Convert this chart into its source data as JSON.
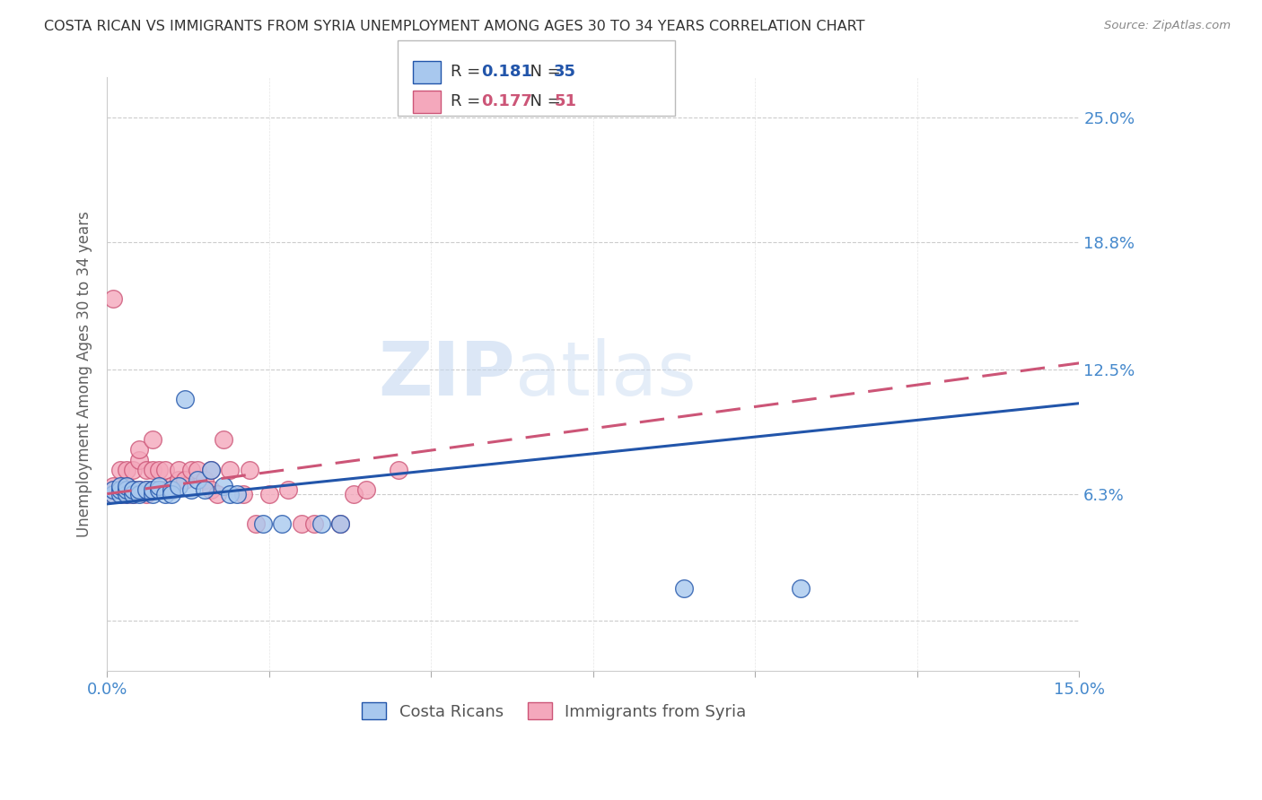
{
  "title": "COSTA RICAN VS IMMIGRANTS FROM SYRIA UNEMPLOYMENT AMONG AGES 30 TO 34 YEARS CORRELATION CHART",
  "source": "Source: ZipAtlas.com",
  "xmin": 0.0,
  "xmax": 0.15,
  "ymin": -0.025,
  "ymax": 0.27,
  "ylabel": "Unemployment Among Ages 30 to 34 years",
  "watermark_zip": "ZIP",
  "watermark_atlas": "atlas",
  "legend_blue_r": "0.181",
  "legend_blue_n": "35",
  "legend_pink_r": "0.177",
  "legend_pink_n": "51",
  "blue_color": "#A8C8EE",
  "pink_color": "#F4A8BC",
  "regression_blue_color": "#2255AA",
  "regression_pink_color": "#CC5577",
  "blue_scatter_x": [
    0.001,
    0.001,
    0.002,
    0.002,
    0.002,
    0.003,
    0.003,
    0.003,
    0.004,
    0.004,
    0.005,
    0.005,
    0.006,
    0.007,
    0.007,
    0.008,
    0.008,
    0.009,
    0.01,
    0.01,
    0.011,
    0.012,
    0.013,
    0.014,
    0.015,
    0.016,
    0.018,
    0.019,
    0.02,
    0.024,
    0.027,
    0.033,
    0.036,
    0.089,
    0.107
  ],
  "blue_scatter_y": [
    0.063,
    0.065,
    0.063,
    0.065,
    0.067,
    0.063,
    0.065,
    0.067,
    0.063,
    0.065,
    0.063,
    0.065,
    0.065,
    0.063,
    0.065,
    0.065,
    0.067,
    0.063,
    0.065,
    0.063,
    0.067,
    0.11,
    0.065,
    0.07,
    0.065,
    0.075,
    0.067,
    0.063,
    0.063,
    0.048,
    0.048,
    0.048,
    0.048,
    0.016,
    0.016
  ],
  "pink_scatter_x": [
    0.001,
    0.001,
    0.001,
    0.001,
    0.002,
    0.002,
    0.002,
    0.003,
    0.003,
    0.003,
    0.003,
    0.004,
    0.004,
    0.004,
    0.005,
    0.005,
    0.005,
    0.006,
    0.006,
    0.006,
    0.007,
    0.007,
    0.007,
    0.008,
    0.008,
    0.009,
    0.009,
    0.01,
    0.01,
    0.011,
    0.011,
    0.012,
    0.013,
    0.014,
    0.015,
    0.016,
    0.016,
    0.017,
    0.018,
    0.019,
    0.021,
    0.022,
    0.023,
    0.025,
    0.028,
    0.03,
    0.032,
    0.036,
    0.038,
    0.04,
    0.045
  ],
  "pink_scatter_y": [
    0.063,
    0.065,
    0.067,
    0.16,
    0.063,
    0.065,
    0.075,
    0.063,
    0.065,
    0.067,
    0.075,
    0.063,
    0.065,
    0.075,
    0.065,
    0.08,
    0.085,
    0.063,
    0.065,
    0.075,
    0.065,
    0.075,
    0.09,
    0.065,
    0.075,
    0.065,
    0.075,
    0.065,
    0.067,
    0.07,
    0.075,
    0.07,
    0.075,
    0.075,
    0.07,
    0.065,
    0.075,
    0.063,
    0.09,
    0.075,
    0.063,
    0.075,
    0.048,
    0.063,
    0.065,
    0.048,
    0.048,
    0.048,
    0.063,
    0.065,
    0.075
  ],
  "blue_line_x": [
    0.0,
    0.15
  ],
  "blue_line_y": [
    0.058,
    0.108
  ],
  "pink_line_x": [
    0.0,
    0.15
  ],
  "pink_line_y": [
    0.063,
    0.128
  ],
  "background_color": "#FFFFFF",
  "grid_color": "#CCCCCC",
  "ylabel_ticks": [
    0.0,
    0.063,
    0.125,
    0.188,
    0.25
  ],
  "ylabel_tick_labels": [
    "",
    "6.3%",
    "12.5%",
    "18.8%",
    "25.0%"
  ],
  "axis_tick_color": "#4488CC",
  "title_color": "#333333",
  "source_color": "#888888",
  "ylabel_color": "#606060"
}
